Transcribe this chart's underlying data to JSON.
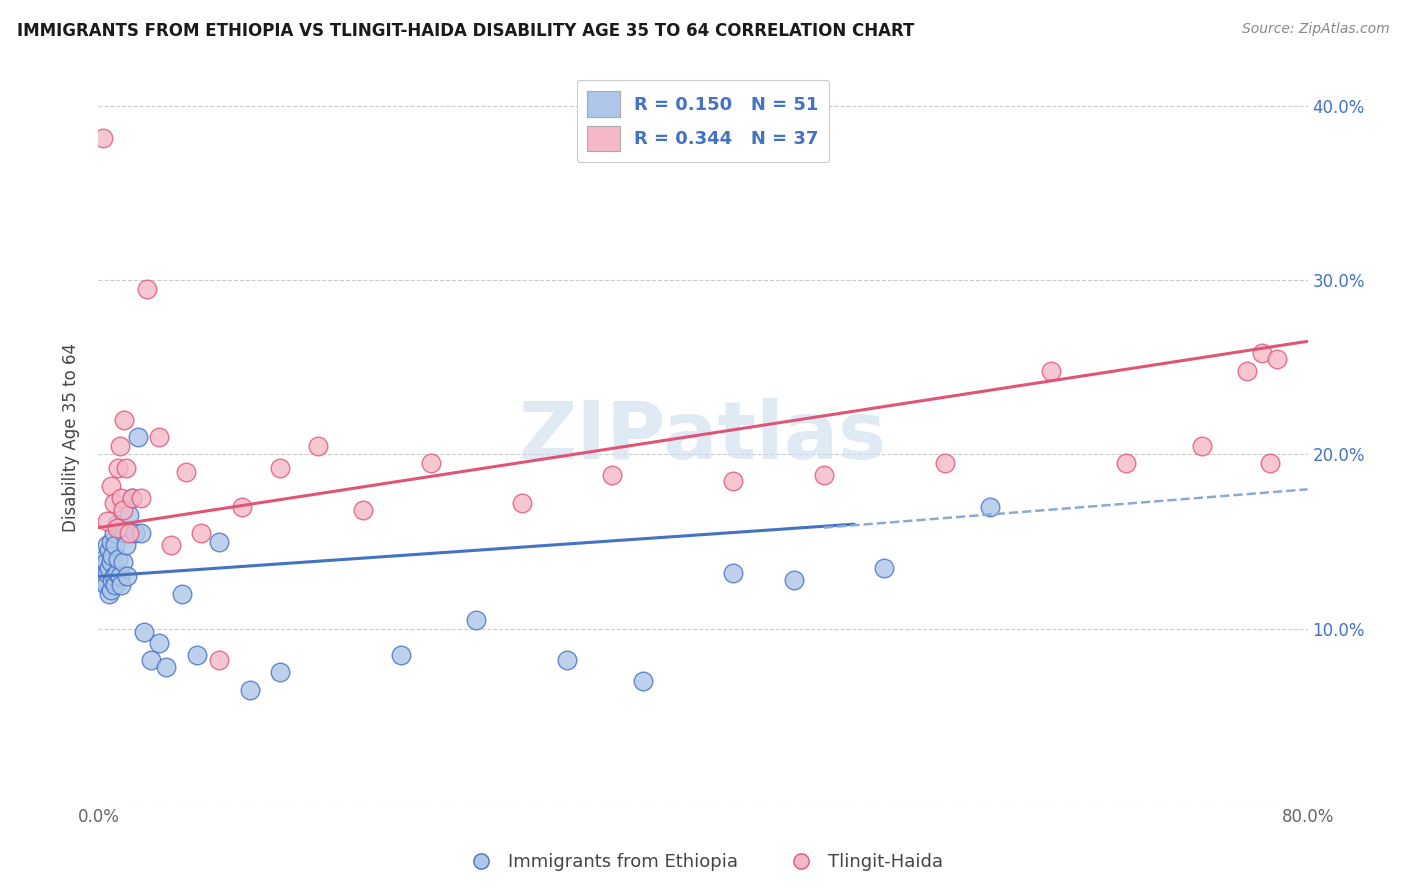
{
  "title": "IMMIGRANTS FROM ETHIOPIA VS TLINGIT-HAIDA DISABILITY AGE 35 TO 64 CORRELATION CHART",
  "source": "Source: ZipAtlas.com",
  "ylabel": "Disability Age 35 to 64",
  "xlim": [
    0.0,
    0.8
  ],
  "ylim": [
    0.0,
    0.42
  ],
  "x_tick_positions": [
    0.0,
    0.1,
    0.2,
    0.3,
    0.4,
    0.5,
    0.6,
    0.7,
    0.8
  ],
  "x_tick_labels": [
    "0.0%",
    "",
    "",
    "",
    "",
    "",
    "",
    "",
    "80.0%"
  ],
  "y_tick_positions": [
    0.0,
    0.1,
    0.2,
    0.3,
    0.4
  ],
  "y_tick_labels": [
    "",
    "10.0%",
    "20.0%",
    "30.0%",
    "40.0%"
  ],
  "legend_r1": "R = 0.150",
  "legend_n1": "N = 51",
  "legend_r2": "R = 0.344",
  "legend_n2": "N = 37",
  "color_blue": "#aec6e8",
  "color_pink": "#f5b8c8",
  "line_blue": "#4472c4",
  "line_pink": "#e05575",
  "dashed_line_color": "#8aaad4",
  "legend_text_color": "#4472c4",
  "watermark": "ZIPatlas",
  "blue_points_x": [
    0.002,
    0.003,
    0.004,
    0.004,
    0.005,
    0.005,
    0.006,
    0.006,
    0.007,
    0.007,
    0.007,
    0.008,
    0.008,
    0.008,
    0.009,
    0.009,
    0.01,
    0.01,
    0.011,
    0.011,
    0.012,
    0.012,
    0.013,
    0.014,
    0.015,
    0.016,
    0.017,
    0.018,
    0.019,
    0.02,
    0.022,
    0.024,
    0.026,
    0.028,
    0.03,
    0.035,
    0.04,
    0.045,
    0.055,
    0.065,
    0.08,
    0.1,
    0.12,
    0.2,
    0.25,
    0.31,
    0.36,
    0.42,
    0.46,
    0.52,
    0.59
  ],
  "blue_points_y": [
    0.13,
    0.135,
    0.128,
    0.14,
    0.125,
    0.138,
    0.132,
    0.148,
    0.12,
    0.135,
    0.145,
    0.122,
    0.138,
    0.15,
    0.128,
    0.142,
    0.13,
    0.155,
    0.125,
    0.148,
    0.132,
    0.16,
    0.14,
    0.13,
    0.125,
    0.138,
    0.155,
    0.148,
    0.13,
    0.165,
    0.175,
    0.155,
    0.21,
    0.155,
    0.098,
    0.082,
    0.092,
    0.078,
    0.12,
    0.085,
    0.15,
    0.065,
    0.075,
    0.085,
    0.105,
    0.082,
    0.07,
    0.132,
    0.128,
    0.135,
    0.17
  ],
  "pink_points_x": [
    0.003,
    0.006,
    0.008,
    0.01,
    0.012,
    0.013,
    0.014,
    0.015,
    0.016,
    0.017,
    0.018,
    0.02,
    0.022,
    0.028,
    0.032,
    0.04,
    0.048,
    0.058,
    0.068,
    0.08,
    0.095,
    0.12,
    0.145,
    0.175,
    0.22,
    0.28,
    0.34,
    0.42,
    0.48,
    0.56,
    0.63,
    0.68,
    0.73,
    0.76,
    0.77,
    0.775,
    0.78
  ],
  "pink_points_y": [
    0.382,
    0.162,
    0.182,
    0.172,
    0.158,
    0.192,
    0.205,
    0.175,
    0.168,
    0.22,
    0.192,
    0.155,
    0.175,
    0.175,
    0.295,
    0.21,
    0.148,
    0.19,
    0.155,
    0.082,
    0.17,
    0.192,
    0.205,
    0.168,
    0.195,
    0.172,
    0.188,
    0.185,
    0.188,
    0.195,
    0.248,
    0.195,
    0.205,
    0.248,
    0.258,
    0.195,
    0.255
  ],
  "blue_solid_line_x": [
    0.0,
    0.5
  ],
  "blue_solid_line_y": [
    0.13,
    0.16
  ],
  "blue_dashed_line_x": [
    0.48,
    0.8
  ],
  "blue_dashed_line_y": [
    0.158,
    0.18
  ],
  "pink_line_x": [
    0.0,
    0.8
  ],
  "pink_line_y": [
    0.158,
    0.265
  ]
}
